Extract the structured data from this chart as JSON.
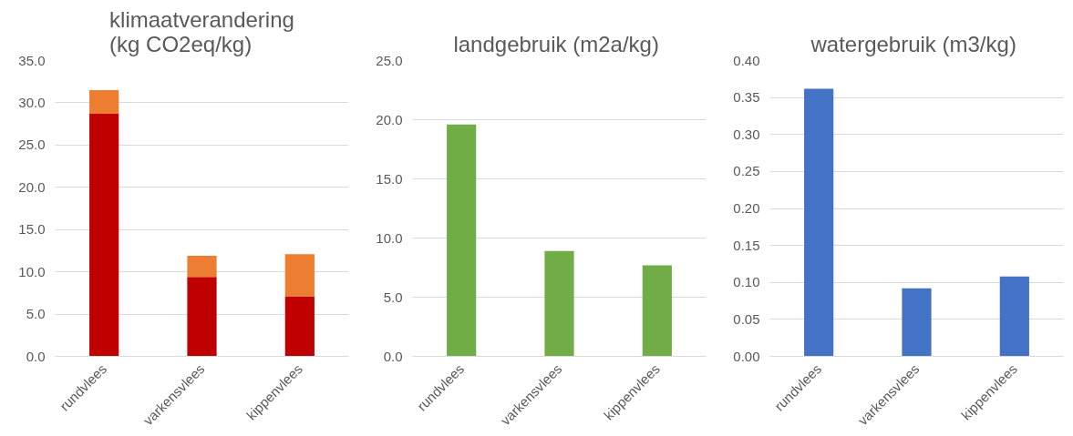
{
  "chart_data": [
    {
      "type": "bar",
      "title": "klimaatverandering\n(kg CO2eq/kg)",
      "categories": [
        "rundvlees",
        "varkensvlees",
        "kippenvlees"
      ],
      "stacked": true,
      "series": [
        {
          "color": "#c00000",
          "values": [
            28.7,
            9.4,
            7.1
          ]
        },
        {
          "color": "#ed7d31",
          "values": [
            2.8,
            2.5,
            5.0
          ]
        }
      ],
      "ylim": [
        0,
        35
      ],
      "yticks": [
        {
          "value": 0,
          "label": "0.0"
        },
        {
          "value": 5,
          "label": "5.0"
        },
        {
          "value": 10,
          "label": "10.0"
        },
        {
          "value": 15,
          "label": "15.0"
        },
        {
          "value": 20,
          "label": "20.0"
        },
        {
          "value": 25,
          "label": "25.0"
        },
        {
          "value": 30,
          "label": "30.0"
        },
        {
          "value": 35,
          "label": "35.0"
        }
      ],
      "grid": "y"
    },
    {
      "type": "bar",
      "title": "landgebruik  (m2a/kg)",
      "categories": [
        "rundvlees",
        "varkensvlees",
        "kippenvlees"
      ],
      "series": [
        {
          "color": "#70ad47",
          "values": [
            19.6,
            8.9,
            7.7
          ]
        }
      ],
      "ylim": [
        0,
        25
      ],
      "yticks": [
        {
          "value": 0,
          "label": "0.0"
        },
        {
          "value": 5,
          "label": "5.0"
        },
        {
          "value": 10,
          "label": "10.0"
        },
        {
          "value": 15,
          "label": "15.0"
        },
        {
          "value": 20,
          "label": "20.0"
        },
        {
          "value": 25,
          "label": "25.0"
        }
      ],
      "grid": "y"
    },
    {
      "type": "bar",
      "title": "watergebruik  (m3/kg)",
      "categories": [
        "rundvlees",
        "varkensvlees",
        "kippenvlees"
      ],
      "series": [
        {
          "color": "#4472c4",
          "values": [
            0.362,
            0.092,
            0.108
          ]
        }
      ],
      "ylim": [
        0,
        0.4
      ],
      "yticks": [
        {
          "value": 0,
          "label": "0.00"
        },
        {
          "value": 0.05,
          "label": "0.05"
        },
        {
          "value": 0.1,
          "label": "0.10"
        },
        {
          "value": 0.15,
          "label": "0.15"
        },
        {
          "value": 0.2,
          "label": "0.20"
        },
        {
          "value": 0.25,
          "label": "0.25"
        },
        {
          "value": 0.3,
          "label": "0.30"
        },
        {
          "value": 0.35,
          "label": "0.35"
        },
        {
          "value": 0.4,
          "label": "0.40"
        }
      ],
      "grid": "y"
    }
  ]
}
